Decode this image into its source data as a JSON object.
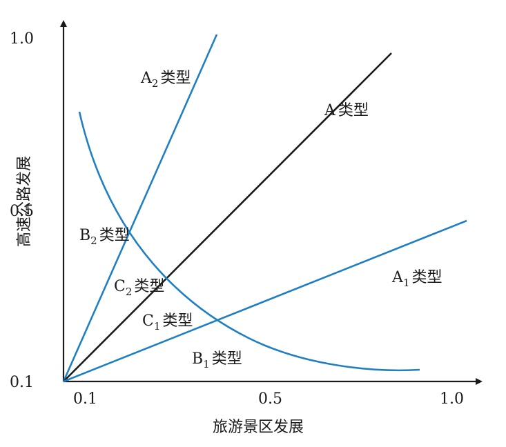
{
  "diagram": {
    "x_axis": {
      "title": "旅游景区发展",
      "ticks": [
        {
          "label": "0.1",
          "value": 0.1
        },
        {
          "label": "0.5",
          "value": 0.5
        },
        {
          "label": "1.0",
          "value": 1.0
        }
      ]
    },
    "y_axis": {
      "title": "高速公路发展",
      "ticks": [
        {
          "label": "0.1",
          "value": 0.1
        },
        {
          "label": "0.5",
          "value": 0.5
        },
        {
          "label": "1.0",
          "value": 1.0
        }
      ]
    },
    "regions": [
      {
        "id": "a2",
        "letter": "A",
        "sub": "2",
        "suffix": "类型"
      },
      {
        "id": "a",
        "letter": "A",
        "sub": "",
        "suffix": "类型"
      },
      {
        "id": "b2",
        "letter": "B",
        "sub": "2",
        "suffix": "类型"
      },
      {
        "id": "c2",
        "letter": "C",
        "sub": "2",
        "suffix": "类型"
      },
      {
        "id": "c1",
        "letter": "C",
        "sub": "1",
        "suffix": "类型"
      },
      {
        "id": "a1",
        "letter": "A",
        "sub": "1",
        "suffix": "类型"
      },
      {
        "id": "b1",
        "letter": "B",
        "sub": "1",
        "suffix": "类型"
      }
    ],
    "colors": {
      "axis": "#1a1a1a",
      "diagonal": "#1a1a1a",
      "curves": "#1f7fc1"
    }
  }
}
